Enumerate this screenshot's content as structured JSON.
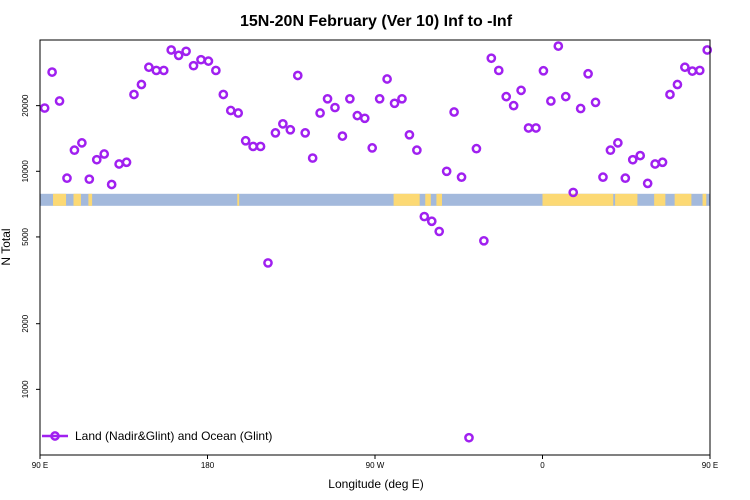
{
  "chart_data": {
    "type": "scatter",
    "title": "15N-20N February (Ver 10)   Inf to -Inf",
    "xlabel": "Longitude (deg E)",
    "ylabel": "N Total",
    "y_scale": "log",
    "xlim": [
      90,
      450
    ],
    "ylim": [
      500,
      40000
    ],
    "x_ticks": [
      {
        "value": 90,
        "label": "90 E"
      },
      {
        "value": 180,
        "label": "180"
      },
      {
        "value": 270,
        "label": "90 W"
      },
      {
        "value": 360,
        "label": "0"
      },
      {
        "value": 450,
        "label": "90 E"
      }
    ],
    "y_ticks": [
      {
        "value": 1000,
        "label": "1000"
      },
      {
        "value": 2000,
        "label": "2000"
      },
      {
        "value": 5000,
        "label": "5000"
      },
      {
        "value": 10000,
        "label": "10000"
      },
      {
        "value": 20000,
        "label": "20000"
      }
    ],
    "land_ocean_strip": {
      "y_center": 7400,
      "ocean_color": "#a3b9dc",
      "land_color": "#fcd974"
    },
    "series": [
      {
        "name": "Land (Nadir&Glint) and Ocean (Glint)",
        "color": "#a020f0",
        "marker": "open-circle",
        "x": [
          92.5,
          96.5,
          100.5,
          104.5,
          108.5,
          112.5,
          116.5,
          120.5,
          124.5,
          128.5,
          132.5,
          136.5,
          140.5,
          144.5,
          148.5,
          152.5,
          156.5,
          160.5,
          164.5,
          168.5,
          172.5,
          176.5,
          180.5,
          184.5,
          188.5,
          192.5,
          196.5,
          200.5,
          204.5,
          208.5,
          212.5,
          216.5,
          220.5,
          224.5,
          228.5,
          232.5,
          236.5,
          240.5,
          244.5,
          248.5,
          252.5,
          256.5,
          260.5,
          264.5,
          268.5,
          272.5,
          276.5,
          280.5,
          284.5,
          288.5,
          292.5,
          296.5,
          300.5,
          304.5,
          308.5,
          312.5,
          316.5,
          320.5,
          324.5,
          328.5,
          332.5,
          336.5,
          340.5,
          344.5,
          348.5,
          352.5,
          356.5,
          360.5,
          364.5,
          368.5,
          372.5,
          376.5,
          380.5,
          384.5,
          388.5,
          392.5,
          396.5,
          400.5,
          404.5,
          408.5,
          412.5,
          416.5,
          420.5,
          424.5,
          428.5,
          432.5,
          436.5,
          440.5,
          444.5,
          448.5
        ],
        "y": [
          19500,
          28500,
          21000,
          9300,
          12500,
          13500,
          9200,
          11300,
          12000,
          8700,
          10800,
          11000,
          22500,
          25000,
          30000,
          29000,
          29000,
          36000,
          34000,
          35500,
          30500,
          32500,
          32000,
          29000,
          22500,
          19000,
          18500,
          13800,
          13000,
          13000,
          3800,
          15000,
          16500,
          15500,
          27500,
          15000,
          11500,
          18500,
          21500,
          19600,
          14500,
          21500,
          18000,
          17500,
          12800,
          21500,
          26500,
          20500,
          21500,
          14700,
          12500,
          6200,
          5900,
          5300,
          10000,
          18700,
          9400,
          600,
          12700,
          4800,
          33000,
          29000,
          22000,
          20000,
          23500,
          15800,
          15800,
          28900,
          21000,
          37500,
          22000,
          8000,
          19400,
          28000,
          20700,
          9400,
          12500,
          13500,
          9300,
          11300,
          11800,
          8800,
          10800,
          11000,
          22500,
          25000,
          30000,
          28800,
          29000,
          36000
        ]
      }
    ],
    "legend": {
      "placement": "bottom-left"
    }
  }
}
